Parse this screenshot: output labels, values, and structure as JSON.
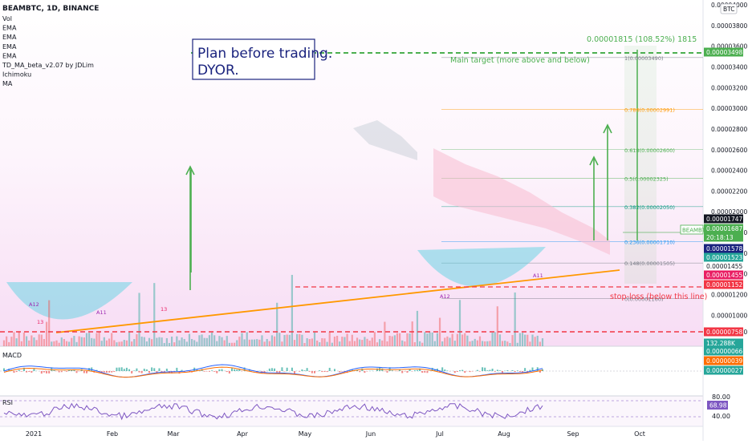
{
  "header": {
    "title": "BEAMBTC, 1D, BINANCE",
    "indicators": [
      "Vol",
      "EMA",
      "EMA",
      "EMA",
      "EMA",
      "TD_MA_beta_v2.07 by JDLim",
      "Ichimoku",
      "MA"
    ]
  },
  "currency_badge": "BTC",
  "annotation_box": {
    "line1": "Plan before trading.",
    "line2": "DYOR."
  },
  "measure_label": "0.00001815 (108.52%) 1815",
  "main_target_label": "Main target (more above and below)",
  "stop_loss_label": "stop-loss (below this line)",
  "ticker_badge": "BEAMBTC",
  "price_scale": {
    "ticks": [
      "0.00004000",
      "0.00003800",
      "0.00003600",
      "0.00003400",
      "0.00003200",
      "0.00003000",
      "0.00002800",
      "0.00002600",
      "0.00002400",
      "0.00002200",
      "0.00002000",
      "0.00001800",
      "0.00001600",
      "0.00001400",
      "0.00001200",
      "0.00001000",
      "0.00000840"
    ],
    "badges": [
      {
        "text": "0.00003498",
        "bg": "#4caf50",
        "fg": "#ffffff"
      },
      {
        "text": "0.00001747",
        "bg": "#131722",
        "fg": "#ffffff"
      },
      {
        "text": "0.00001687",
        "bg": "#4caf50",
        "fg": "#ffffff"
      },
      {
        "text": "20:18:13",
        "bg": "#4caf50",
        "fg": "#ffffff"
      },
      {
        "text": "0.00001578",
        "bg": "#1a237e",
        "fg": "#ffffff"
      },
      {
        "text": "0.00001523",
        "bg": "#26a69a",
        "fg": "#ffffff"
      },
      {
        "text": "0.00001455",
        "bg": "#ffffff",
        "fg": "#131722"
      },
      {
        "text": "0.00001455",
        "bg": "#e91e63",
        "fg": "#ffffff"
      },
      {
        "text": "0.00001152",
        "bg": "#f23645",
        "fg": "#ffffff"
      },
      {
        "text": "0.00000758",
        "bg": "#f23645",
        "fg": "#ffffff"
      },
      {
        "text": "132.288K",
        "bg": "#26a69a",
        "fg": "#ffffff"
      }
    ]
  },
  "macd": {
    "label": "MACD",
    "badges": [
      {
        "text": "0.00000066",
        "bg": "#26a69a",
        "fg": "#ffffff"
      },
      {
        "text": "0.00000039",
        "bg": "#ff6d00",
        "fg": "#ffffff"
      },
      {
        "text": "0.00000027",
        "bg": "#26a69a",
        "fg": "#ffffff"
      }
    ]
  },
  "rsi": {
    "label": "RSI",
    "ticks": [
      "80.00",
      "40.00"
    ],
    "badge": {
      "text": "68.98",
      "bg": "#7e57c2",
      "fg": "#ffffff"
    }
  },
  "time_axis": [
    "2021",
    "Feb",
    "Mar",
    "Apr",
    "May",
    "Jun",
    "Jul",
    "Aug",
    "Sep",
    "Oct"
  ],
  "chart_data": {
    "type": "candlestick",
    "title": "BEAMBTC, 1D, BINANCE",
    "x_labels": [
      "2021",
      "Feb",
      "Mar",
      "Apr",
      "May",
      "Jun",
      "Jul",
      "Aug",
      "Sep",
      "Oct"
    ],
    "y_unit": "BTC",
    "ylim": [
      8.2e-06,
      4.1e-05
    ],
    "last_price": 1.687e-05,
    "countdown": "20:18:13",
    "fibonacci_levels": [
      {
        "ratio": "1",
        "price": "0.00003490"
      },
      {
        "ratio": "0.786",
        "price": "0.00002991"
      },
      {
        "ratio": "0.618",
        "price": "0.00002600"
      },
      {
        "ratio": "0.5",
        "price": "0.00002325"
      },
      {
        "ratio": "0.382",
        "price": "0.00002050"
      },
      {
        "ratio": "0.236",
        "price": "0.00001710"
      },
      {
        "ratio": "0.148",
        "price": "0.00001505"
      },
      {
        "ratio": "0",
        "price": "0.00001160"
      }
    ],
    "main_target": 3.498e-05,
    "stop_loss": 1.152e-05,
    "lower_dashed_level": 7.58e-06,
    "moving_average_values": [
      1.747e-05,
      1.578e-05,
      1.523e-05,
      1.455e-05
    ],
    "volume_last": "132.288K",
    "macd_values": [
      6.6e-07,
      3.9e-07,
      2.7e-07
    ],
    "rsi_value": 68.98,
    "rsi_ticks": [
      80,
      40
    ],
    "candle_markers": [
      "13",
      "13",
      "A12",
      "A12",
      "A11",
      "A11"
    ],
    "price_path": [
      [
        0,
        15.0
      ],
      [
        5,
        14.0
      ],
      [
        10,
        12.5
      ],
      [
        15,
        11.0
      ],
      [
        20,
        9.8
      ],
      [
        25,
        9.4
      ],
      [
        30,
        10.0
      ],
      [
        35,
        11.0
      ],
      [
        40,
        11.8
      ],
      [
        45,
        11.3
      ],
      [
        50,
        10.4
      ],
      [
        55,
        11.1
      ],
      [
        60,
        12.4
      ],
      [
        65,
        14.6
      ],
      [
        70,
        16.0
      ],
      [
        75,
        20.5
      ],
      [
        80,
        25.0
      ],
      [
        85,
        30.5
      ],
      [
        90,
        33.0
      ],
      [
        95,
        30.0
      ],
      [
        100,
        31.5
      ],
      [
        105,
        33.0
      ],
      [
        110,
        33.5
      ],
      [
        115,
        30.5
      ],
      [
        120,
        28.0
      ],
      [
        125,
        25.0
      ],
      [
        130,
        22.8
      ],
      [
        135,
        20.0
      ],
      [
        140,
        18.8
      ],
      [
        145,
        18.8
      ],
      [
        150,
        16.0
      ],
      [
        155,
        13.5
      ],
      [
        160,
        12.0
      ],
      [
        165,
        11.5
      ],
      [
        170,
        12.3
      ],
      [
        175,
        13.8
      ],
      [
        180,
        14.4
      ],
      [
        185,
        12.8
      ],
      [
        190,
        13.6
      ],
      [
        195,
        14.2
      ],
      [
        200,
        14.8
      ],
      [
        205,
        15.3
      ],
      [
        210,
        15.8
      ],
      [
        215,
        16.87
      ]
    ]
  }
}
